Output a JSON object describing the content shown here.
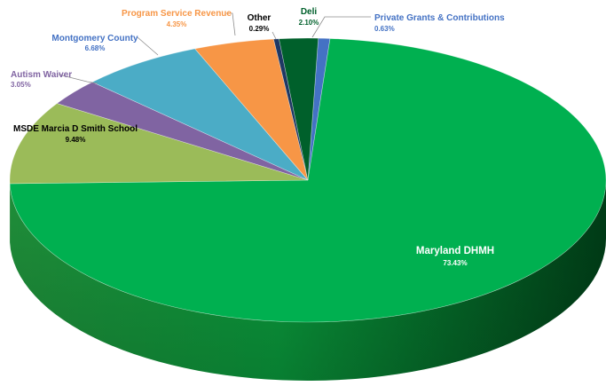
{
  "chart_data": {
    "type": "pie",
    "title": "",
    "legend": "none",
    "labels_on_chart": true,
    "slices": [
      {
        "name": "Private Grants & Contributions",
        "value": 0.63,
        "value_label": "0.63%",
        "color": "#4472c4"
      },
      {
        "name": "Maryland DHMH",
        "value": 73.43,
        "value_label": "73.43%",
        "color": "#00b050"
      },
      {
        "name": "MSDE Marcia D Smith School",
        "value": 9.48,
        "value_label": "9.48%",
        "color": "#9bbb59"
      },
      {
        "name": "Autism Waiver",
        "value": 3.05,
        "value_label": "3.05%",
        "color": "#8064a2"
      },
      {
        "name": "Montgomery County",
        "value": 6.68,
        "value_label": "6.68%",
        "color": "#4bacc6"
      },
      {
        "name": "Program Service Revenue",
        "value": 4.35,
        "value_label": "4.35%",
        "color": "#f79646"
      },
      {
        "name": "Other",
        "value": 0.29,
        "value_label": "0.29%",
        "color": "#1f3864"
      },
      {
        "name": "Deli",
        "value": 2.1,
        "value_label": "2.10%",
        "color": "#00602b"
      }
    ]
  }
}
